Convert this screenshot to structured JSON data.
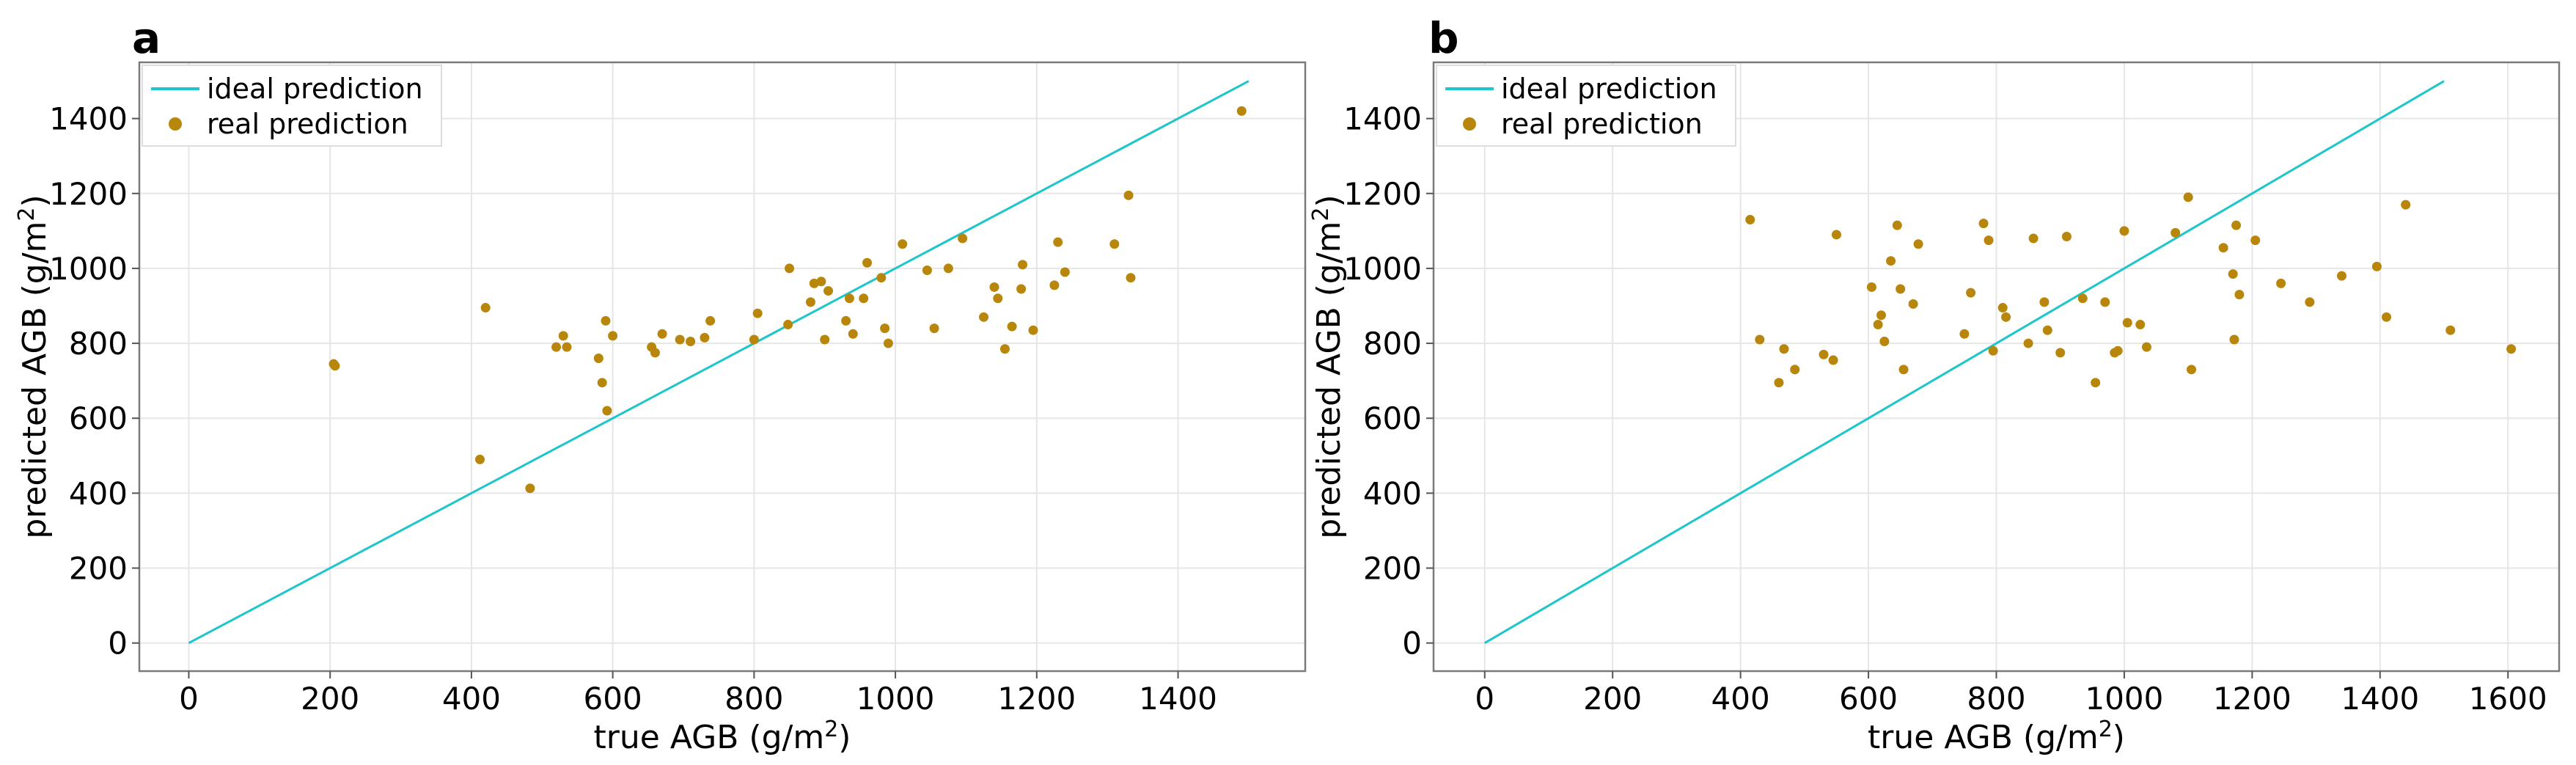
{
  "chart_data": [
    {
      "type": "scatter",
      "panel_label": "a",
      "xlabel": "true AGB (g/m",
      "xlabel_sup": "2",
      "xlabel_end": ")",
      "ylabel": "predicted AGB (g/m",
      "ylabel_sup": "2",
      "ylabel_end": ")",
      "xlim": [
        -70,
        1580
      ],
      "ylim": [
        -75,
        1550
      ],
      "xticks": [
        0,
        200,
        400,
        600,
        800,
        1000,
        1200,
        1400
      ],
      "yticks": [
        0,
        200,
        400,
        600,
        800,
        1000,
        1200,
        1400
      ],
      "legend": {
        "position": "top-left",
        "entries": [
          "ideal prediction",
          "real prediction"
        ]
      },
      "ideal_line": [
        [
          0,
          0
        ],
        [
          1500,
          1500
        ]
      ],
      "colors": {
        "line": "#1cc6cb",
        "points": "#b8860b"
      },
      "points": [
        [
          205,
          745
        ],
        [
          207,
          740
        ],
        [
          412,
          490
        ],
        [
          420,
          895
        ],
        [
          483,
          413
        ],
        [
          520,
          790
        ],
        [
          530,
          820
        ],
        [
          535,
          790
        ],
        [
          580,
          760
        ],
        [
          585,
          695
        ],
        [
          590,
          860
        ],
        [
          592,
          620
        ],
        [
          600,
          820
        ],
        [
          655,
          790
        ],
        [
          660,
          775
        ],
        [
          670,
          825
        ],
        [
          695,
          810
        ],
        [
          710,
          805
        ],
        [
          730,
          815
        ],
        [
          738,
          860
        ],
        [
          800,
          810
        ],
        [
          805,
          880
        ],
        [
          848,
          850
        ],
        [
          850,
          1000
        ],
        [
          880,
          910
        ],
        [
          885,
          960
        ],
        [
          895,
          965
        ],
        [
          900,
          810
        ],
        [
          905,
          940
        ],
        [
          930,
          860
        ],
        [
          935,
          920
        ],
        [
          940,
          825
        ],
        [
          955,
          920
        ],
        [
          960,
          1015
        ],
        [
          980,
          975
        ],
        [
          985,
          840
        ],
        [
          990,
          800
        ],
        [
          1010,
          1065
        ],
        [
          1045,
          995
        ],
        [
          1055,
          840
        ],
        [
          1075,
          1000
        ],
        [
          1095,
          1080
        ],
        [
          1125,
          870
        ],
        [
          1140,
          950
        ],
        [
          1145,
          920
        ],
        [
          1155,
          785
        ],
        [
          1165,
          845
        ],
        [
          1178,
          945
        ],
        [
          1180,
          1010
        ],
        [
          1195,
          835
        ],
        [
          1225,
          955
        ],
        [
          1230,
          1070
        ],
        [
          1240,
          990
        ],
        [
          1310,
          1065
        ],
        [
          1330,
          1195
        ],
        [
          1333,
          975
        ],
        [
          1490,
          1420
        ]
      ]
    },
    {
      "type": "scatter",
      "panel_label": "b",
      "xlabel": "true AGB (g/m",
      "xlabel_sup": "2",
      "xlabel_end": ")",
      "ylabel": "predicted AGB (g/m",
      "ylabel_sup": "2",
      "ylabel_end": ")",
      "xlim": [
        -80,
        1680
      ],
      "ylim": [
        -75,
        1550
      ],
      "xticks": [
        0,
        200,
        400,
        600,
        800,
        1000,
        1200,
        1400,
        1600
      ],
      "yticks": [
        0,
        200,
        400,
        600,
        800,
        1000,
        1200,
        1400
      ],
      "legend": {
        "position": "top-left",
        "entries": [
          "ideal prediction",
          "real prediction"
        ]
      },
      "ideal_line": [
        [
          0,
          0
        ],
        [
          1500,
          1500
        ]
      ],
      "colors": {
        "line": "#1cc6cb",
        "points": "#b8860b"
      },
      "points": [
        [
          415,
          1130
        ],
        [
          430,
          810
        ],
        [
          460,
          695
        ],
        [
          468,
          785
        ],
        [
          485,
          730
        ],
        [
          530,
          770
        ],
        [
          545,
          755
        ],
        [
          550,
          1090
        ],
        [
          605,
          950
        ],
        [
          615,
          850
        ],
        [
          620,
          875
        ],
        [
          625,
          805
        ],
        [
          635,
          1020
        ],
        [
          645,
          1115
        ],
        [
          650,
          945
        ],
        [
          655,
          730
        ],
        [
          670,
          905
        ],
        [
          678,
          1065
        ],
        [
          750,
          825
        ],
        [
          760,
          935
        ],
        [
          780,
          1120
        ],
        [
          788,
          1075
        ],
        [
          795,
          780
        ],
        [
          810,
          895
        ],
        [
          815,
          870
        ],
        [
          850,
          800
        ],
        [
          858,
          1080
        ],
        [
          875,
          910
        ],
        [
          880,
          835
        ],
        [
          900,
          775
        ],
        [
          910,
          1085
        ],
        [
          935,
          920
        ],
        [
          955,
          695
        ],
        [
          970,
          910
        ],
        [
          985,
          775
        ],
        [
          990,
          780
        ],
        [
          1000,
          1100
        ],
        [
          1005,
          855
        ],
        [
          1025,
          850
        ],
        [
          1035,
          790
        ],
        [
          1080,
          1095
        ],
        [
          1100,
          1190
        ],
        [
          1105,
          730
        ],
        [
          1155,
          1055
        ],
        [
          1170,
          985
        ],
        [
          1172,
          810
        ],
        [
          1175,
          1115
        ],
        [
          1180,
          930
        ],
        [
          1205,
          1075
        ],
        [
          1245,
          960
        ],
        [
          1290,
          910
        ],
        [
          1340,
          980
        ],
        [
          1395,
          1005
        ],
        [
          1410,
          870
        ],
        [
          1440,
          1170
        ],
        [
          1510,
          835
        ],
        [
          1605,
          785
        ]
      ]
    }
  ]
}
